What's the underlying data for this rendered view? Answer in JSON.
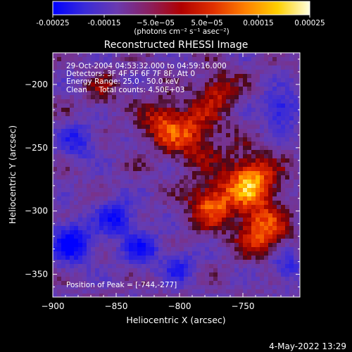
{
  "chart_data": {
    "type": "heatmap",
    "title": "Reconstructed RHESSI Image",
    "xlabel": "Heliocentric X (arcsec)",
    "ylabel": "Heliocentric Y (arcsec)",
    "xlim": [
      -900,
      -705
    ],
    "ylim": [
      -368,
      -175
    ],
    "x_ticks": [
      -900,
      -850,
      -800,
      -750
    ],
    "x_tick_labels": [
      "−900",
      "−850",
      "−800",
      "−750"
    ],
    "y_ticks": [
      -350,
      -300,
      -250,
      -200
    ],
    "y_tick_labels": [
      "−350",
      "−300",
      "−250",
      "−200"
    ],
    "colorbar": {
      "range": [
        -0.00025,
        0.00025
      ],
      "tick_labels": [
        "-0.00025",
        "-0.00015",
        "−5.0e−05",
        "5.0e−05",
        "0.00015",
        "0.00025"
      ],
      "label": "(photons cm⁻² s⁻¹ asec⁻²)",
      "colors": [
        "#0000ff",
        "#3a2bd8",
        "#6a3ab0",
        "#8a2060",
        "#b00000",
        "#e03000",
        "#ff8000",
        "#ffd000",
        "#ffffe0"
      ]
    },
    "annotations": [
      "29-Oct-2004 04:53:32.000 to 04:59:16.000",
      "Detectors: 3F 4F 5F 6F 7F 8F, Att 0",
      "Energy Range: 25.0 - 50.0 keV",
      "Clean     Total counts: 4.50E+03"
    ],
    "peak_label": "Position of Peak = [-744,-277]",
    "peak": {
      "x": -744,
      "y": -277
    },
    "hot_regions": [
      {
        "x": -744,
        "y": -277,
        "sigma": 14,
        "value": 0.00025
      },
      {
        "x": -735,
        "y": -315,
        "sigma": 13,
        "value": 0.0002
      },
      {
        "x": -775,
        "y": -295,
        "sigma": 12,
        "value": 0.00019
      },
      {
        "x": -790,
        "y": -240,
        "sigma": 16,
        "value": 0.00015
      },
      {
        "x": -815,
        "y": -230,
        "sigma": 12,
        "value": 0.00013
      },
      {
        "x": -770,
        "y": -205,
        "sigma": 11,
        "value": 0.00012
      },
      {
        "x": -860,
        "y": -205,
        "sigma": 9,
        "value": 8e-05
      }
    ],
    "cold_regions": [
      {
        "x": -885,
        "y": -325,
        "sigma": 12,
        "value": -0.0002
      },
      {
        "x": -850,
        "y": -305,
        "sigma": 10,
        "value": -0.00018
      },
      {
        "x": -830,
        "y": -330,
        "sigma": 10,
        "value": -0.00016
      },
      {
        "x": -720,
        "y": -220,
        "sigma": 10,
        "value": -0.00016
      },
      {
        "x": -880,
        "y": -245,
        "sigma": 10,
        "value": -0.00013
      },
      {
        "x": -800,
        "y": -345,
        "sigma": 9,
        "value": -0.00012
      },
      {
        "x": -715,
        "y": -345,
        "sigma": 9,
        "value": -0.00012
      }
    ]
  },
  "footer": {
    "date": "4-May-2022 13:29"
  }
}
